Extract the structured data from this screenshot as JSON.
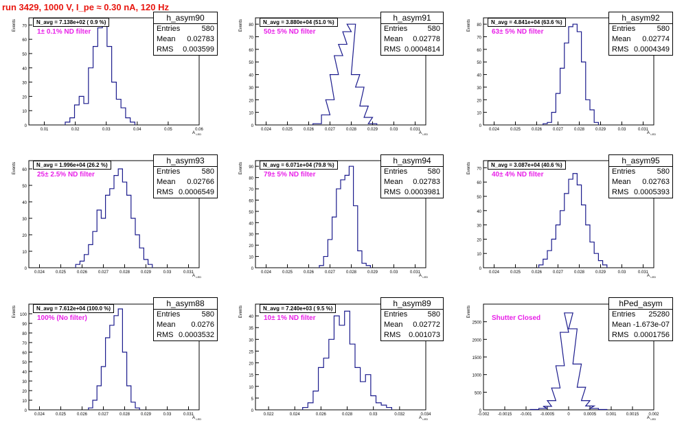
{
  "header": {
    "run_title": "run 3429,  1000 V, I_pe ≈ 0.30 nA, 120 Hz"
  },
  "colors": {
    "histogram_line": "#1a1a8c",
    "filter_label": "#e820e8",
    "run_title": "#e8160f"
  },
  "chart_data": [
    {
      "type": "histogram",
      "name": "h_asym90",
      "stats": {
        "Entries": "580",
        "Mean": "0.02783",
        "RMS": "0.003599"
      },
      "n_avg": "N_avg = 7.138e+02 ( 0.9 %)",
      "filter": "1± 0.1% ND filter",
      "xlabel": "A_LED",
      "ylabel": "Events",
      "xlim": [
        0.005,
        0.06
      ],
      "ylim": [
        0,
        75
      ],
      "xticks": [
        "0.01",
        "0.02",
        "0.03",
        "0.04",
        "0.05",
        "0.06"
      ],
      "xtick_values": [
        0.01,
        0.02,
        0.03,
        0.04,
        0.05,
        0.06
      ],
      "yticks": [
        0,
        10,
        20,
        30,
        40,
        50,
        60,
        70
      ],
      "bins": [
        [
          0.0175,
          2
        ],
        [
          0.019,
          5
        ],
        [
          0.0205,
          14
        ],
        [
          0.022,
          20
        ],
        [
          0.0235,
          15
        ],
        [
          0.025,
          40
        ],
        [
          0.0265,
          55
        ],
        [
          0.028,
          68
        ],
        [
          0.0295,
          70
        ],
        [
          0.031,
          55
        ],
        [
          0.0325,
          30
        ],
        [
          0.034,
          18
        ],
        [
          0.0355,
          12
        ],
        [
          0.037,
          5
        ],
        [
          0.0385,
          2
        ]
      ]
    },
    {
      "type": "histogram",
      "name": "h_asym91",
      "stats": {
        "Entries": "580",
        "Mean": "0.02778",
        "RMS": "0.0004814"
      },
      "n_avg": "N_avg = 3.880e+04 (51.0 %)",
      "filter": "50± 5% ND filter",
      "xlabel": "A_LED",
      "ylabel": "Events",
      "xlim": [
        0.0235,
        0.0315
      ],
      "ylim": [
        0,
        85
      ],
      "xticks": [
        "0.024",
        "0.025",
        "0.026",
        "0.027",
        "0.028",
        "0.029",
        "0.03",
        "0.031"
      ],
      "xtick_values": [
        0.024,
        0.025,
        0.026,
        0.027,
        0.028,
        0.029,
        0.03,
        0.031
      ],
      "yticks": [
        0,
        10,
        20,
        30,
        40,
        50,
        60,
        70,
        80
      ],
      "bins": [
        [
          0.0264,
          1
        ],
        [
          0.0268,
          8
        ],
        [
          0.027,
          20
        ],
        [
          0.0272,
          40
        ],
        [
          0.0274,
          55
        ],
        [
          0.0276,
          64
        ],
        [
          0.0278,
          74
        ],
        [
          0.028,
          80
        ],
        [
          0.0282,
          40
        ],
        [
          0.0284,
          30
        ],
        [
          0.0286,
          15
        ],
        [
          0.0288,
          6
        ],
        [
          0.029,
          1
        ]
      ]
    },
    {
      "type": "histogram",
      "name": "h_asym92",
      "stats": {
        "Entries": "580",
        "Mean": "0.02774",
        "RMS": "0.0004349"
      },
      "n_avg": "N_avg = 4.841e+04 (63.6 %)",
      "filter": "63± 5% ND filter",
      "xlabel": "A_LED",
      "ylabel": "Events",
      "xlim": [
        0.0235,
        0.0315
      ],
      "ylim": [
        0,
        85
      ],
      "xticks": [
        "0.024",
        "0.025",
        "0.026",
        "0.027",
        "0.028",
        "0.029",
        "0.03",
        "0.031"
      ],
      "xtick_values": [
        0.024,
        0.025,
        0.026,
        0.027,
        0.028,
        0.029,
        0.03,
        0.031
      ],
      "yticks": [
        0,
        10,
        20,
        30,
        40,
        50,
        60,
        70,
        80
      ],
      "bins": [
        [
          0.0264,
          1
        ],
        [
          0.0266,
          2
        ],
        [
          0.0268,
          10
        ],
        [
          0.027,
          25
        ],
        [
          0.0272,
          45
        ],
        [
          0.0274,
          65
        ],
        [
          0.0276,
          78
        ],
        [
          0.0278,
          80
        ],
        [
          0.028,
          74
        ],
        [
          0.0282,
          50
        ],
        [
          0.0284,
          20
        ],
        [
          0.0286,
          12
        ],
        [
          0.0288,
          2
        ]
      ]
    },
    {
      "type": "histogram",
      "name": "h_asym93",
      "stats": {
        "Entries": "580",
        "Mean": "0.02766",
        "RMS": "0.0006549"
      },
      "n_avg": "N_avg = 1.996e+04 (26.2 %)",
      "filter": "25± 2.5% ND filter",
      "xlabel": "A_LED",
      "ylabel": "Events",
      "xlim": [
        0.0235,
        0.0315
      ],
      "ylim": [
        0,
        65
      ],
      "xticks": [
        "0.024",
        "0.025",
        "0.026",
        "0.027",
        "0.028",
        "0.029",
        "0.03",
        "0.031"
      ],
      "xtick_values": [
        0.024,
        0.025,
        0.026,
        0.027,
        0.028,
        0.029,
        0.03,
        0.031
      ],
      "yticks": [
        0,
        10,
        20,
        30,
        40,
        50,
        60
      ],
      "bins": [
        [
          0.0258,
          2
        ],
        [
          0.026,
          4
        ],
        [
          0.0262,
          8
        ],
        [
          0.0264,
          14
        ],
        [
          0.0266,
          22
        ],
        [
          0.0268,
          35
        ],
        [
          0.027,
          30
        ],
        [
          0.0272,
          44
        ],
        [
          0.0274,
          48
        ],
        [
          0.0276,
          56
        ],
        [
          0.0278,
          60
        ],
        [
          0.028,
          52
        ],
        [
          0.0282,
          44
        ],
        [
          0.0284,
          30
        ],
        [
          0.0286,
          20
        ],
        [
          0.0288,
          12
        ],
        [
          0.029,
          5
        ],
        [
          0.0292,
          2
        ]
      ]
    },
    {
      "type": "histogram",
      "name": "h_asym94",
      "stats": {
        "Entries": "580",
        "Mean": "0.02783",
        "RMS": "0.0003981"
      },
      "n_avg": "N_avg = 6.071e+04 (79.8 %)",
      "filter": "79± 5% ND filter",
      "xlabel": "A_LED",
      "ylabel": "Events",
      "xlim": [
        0.0235,
        0.0315
      ],
      "ylim": [
        0,
        95
      ],
      "xticks": [
        "0.024",
        "0.025",
        "0.026",
        "0.027",
        "0.028",
        "0.029",
        "0.03",
        "0.031"
      ],
      "xtick_values": [
        0.024,
        0.025,
        0.026,
        0.027,
        0.028,
        0.029,
        0.03,
        0.031
      ],
      "yticks": [
        0,
        10,
        20,
        30,
        40,
        50,
        60,
        70,
        80,
        90
      ],
      "bins": [
        [
          0.0266,
          2
        ],
        [
          0.0268,
          10
        ],
        [
          0.027,
          25
        ],
        [
          0.0272,
          45
        ],
        [
          0.0274,
          70
        ],
        [
          0.0276,
          78
        ],
        [
          0.0278,
          82
        ],
        [
          0.028,
          90
        ],
        [
          0.0282,
          55
        ],
        [
          0.0284,
          15
        ],
        [
          0.0286,
          4
        ],
        [
          0.0288,
          2
        ]
      ]
    },
    {
      "type": "histogram",
      "name": "h_asym95",
      "stats": {
        "Entries": "580",
        "Mean": "0.02763",
        "RMS": "0.0005393"
      },
      "n_avg": "N_avg = 3.087e+04 (40.6 %)",
      "filter": "40± 4% ND filter",
      "xlabel": "A_LED",
      "ylabel": "Events",
      "xlim": [
        0.0235,
        0.0315
      ],
      "ylim": [
        0,
        75
      ],
      "xticks": [
        "0.024",
        "0.025",
        "0.026",
        "0.027",
        "0.028",
        "0.029",
        "0.03",
        "0.031"
      ],
      "xtick_values": [
        0.024,
        0.025,
        0.026,
        0.027,
        0.028,
        0.029,
        0.03,
        0.031
      ],
      "yticks": [
        0,
        10,
        20,
        30,
        40,
        50,
        60,
        70
      ],
      "bins": [
        [
          0.0262,
          2
        ],
        [
          0.0264,
          6
        ],
        [
          0.0266,
          12
        ],
        [
          0.0268,
          20
        ],
        [
          0.027,
          30
        ],
        [
          0.0272,
          40
        ],
        [
          0.0274,
          52
        ],
        [
          0.0276,
          62
        ],
        [
          0.0278,
          66
        ],
        [
          0.028,
          58
        ],
        [
          0.0282,
          44
        ],
        [
          0.0284,
          30
        ],
        [
          0.0286,
          18
        ],
        [
          0.0288,
          10
        ],
        [
          0.029,
          5
        ],
        [
          0.0292,
          2
        ]
      ]
    },
    {
      "type": "histogram",
      "name": "h_asym88",
      "stats": {
        "Entries": "580",
        "Mean": "0.0276",
        "RMS": "0.0003532"
      },
      "n_avg": "N_avg = 7.612e+04 (100.0 %)",
      "filter": "100% (No filter)",
      "xlabel": "A_LED",
      "ylabel": "Events",
      "xlim": [
        0.0235,
        0.0315
      ],
      "ylim": [
        0,
        110
      ],
      "xticks": [
        "0.024",
        "0.025",
        "0.026",
        "0.027",
        "0.028",
        "0.029",
        "0.03",
        "0.031"
      ],
      "xtick_values": [
        0.024,
        0.025,
        0.026,
        0.027,
        0.028,
        0.029,
        0.03,
        0.031
      ],
      "yticks": [
        0,
        10,
        20,
        30,
        40,
        50,
        60,
        70,
        80,
        90,
        100
      ],
      "bins": [
        [
          0.0264,
          2
        ],
        [
          0.0266,
          10
        ],
        [
          0.0268,
          25
        ],
        [
          0.027,
          45
        ],
        [
          0.0272,
          75
        ],
        [
          0.0274,
          88
        ],
        [
          0.0276,
          98
        ],
        [
          0.0278,
          105
        ],
        [
          0.028,
          60
        ],
        [
          0.0282,
          25
        ],
        [
          0.0284,
          8
        ],
        [
          0.0286,
          2
        ]
      ]
    },
    {
      "type": "histogram",
      "name": "h_asym89",
      "stats": {
        "Entries": "580",
        "Mean": "0.02772",
        "RMS": "0.001073"
      },
      "n_avg": "N_avg = 7.240e+03 ( 9.5 %)",
      "filter": "10± 1% ND filter",
      "xlabel": "A_LED",
      "ylabel": "Events",
      "xlim": [
        0.021,
        0.034
      ],
      "ylim": [
        0,
        45
      ],
      "xticks": [
        "0.022",
        "0.024",
        "0.026",
        "0.028",
        "0.03",
        "0.032",
        "0.034"
      ],
      "xtick_values": [
        0.022,
        0.024,
        0.026,
        0.028,
        0.03,
        0.032,
        0.034
      ],
      "yticks": [
        0,
        5,
        10,
        15,
        20,
        25,
        30,
        35,
        40
      ],
      "bins": [
        [
          0.0248,
          1
        ],
        [
          0.0252,
          3
        ],
        [
          0.0256,
          8
        ],
        [
          0.026,
          18
        ],
        [
          0.0264,
          22
        ],
        [
          0.0268,
          30
        ],
        [
          0.0272,
          40
        ],
        [
          0.0276,
          36
        ],
        [
          0.028,
          42
        ],
        [
          0.0284,
          28
        ],
        [
          0.0288,
          18
        ],
        [
          0.0292,
          12
        ],
        [
          0.0296,
          15
        ],
        [
          0.03,
          6
        ],
        [
          0.0304,
          3
        ],
        [
          0.0308,
          2
        ],
        [
          0.0312,
          1
        ]
      ]
    },
    {
      "type": "histogram",
      "name": "hPed_asym",
      "stats": {
        "Entries": "25280",
        "Mean": "-1.673e-07",
        "RMS": "0.0001756"
      },
      "n_avg": "",
      "filter": "Shutter Closed",
      "xlabel": "A_LED",
      "ylabel": "Events",
      "xlim": [
        -0.002,
        0.002
      ],
      "ylim": [
        0,
        3000
      ],
      "xticks": [
        "-0.002",
        "-0.0015",
        "-0.001",
        "-0.0005",
        "0",
        "0.0005",
        "0.001",
        "0.0015",
        "0.002"
      ],
      "xtick_values": [
        -0.002,
        -0.0015,
        -0.001,
        -0.0005,
        0,
        0.0005,
        0.001,
        0.0015,
        0.002
      ],
      "yticks": [
        0,
        500,
        1000,
        1500,
        2000,
        2500
      ],
      "bins": [
        [
          -0.0008,
          10
        ],
        [
          -0.0006,
          40
        ],
        [
          -0.0005,
          100
        ],
        [
          -0.0004,
          260
        ],
        [
          -0.0003,
          620
        ],
        [
          -0.0002,
          1250
        ],
        [
          -0.0001,
          2200
        ],
        [
          0.0,
          2750
        ],
        [
          0.0001,
          2300
        ],
        [
          0.0002,
          1300
        ],
        [
          0.0003,
          640
        ],
        [
          0.0004,
          260
        ],
        [
          0.0005,
          110
        ],
        [
          0.0006,
          40
        ],
        [
          0.0008,
          10
        ]
      ]
    }
  ]
}
